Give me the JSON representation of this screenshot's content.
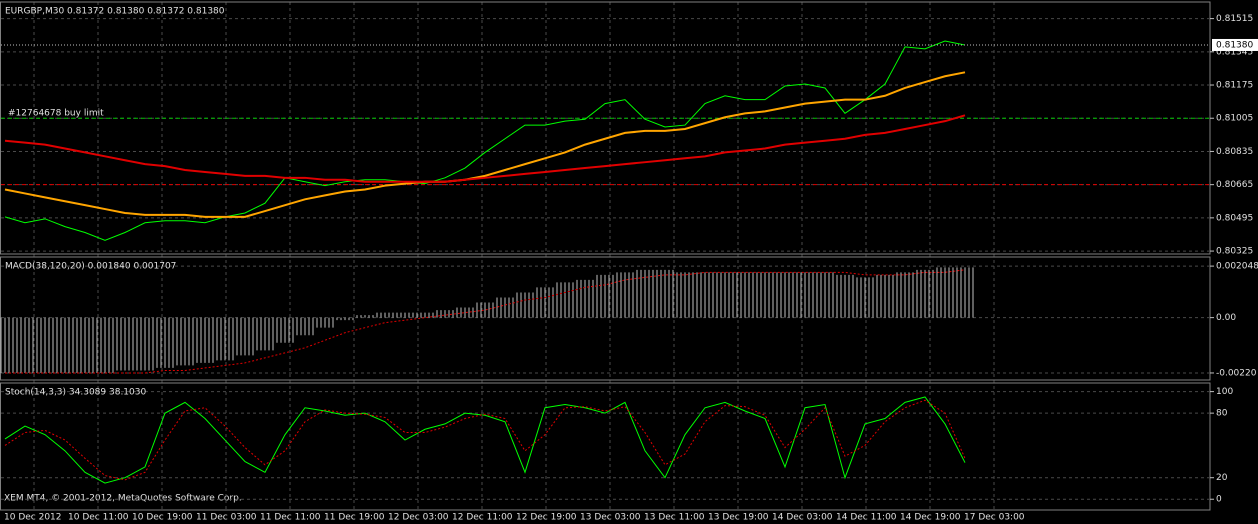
{
  "chart_data": [
    {
      "type": "line",
      "title": "EURGBP,M30  0.81372 0.81380 0.81372 0.81380",
      "ylim": [
        0.8031,
        0.816
      ],
      "yticks": [
        0.81515,
        0.81345,
        0.81175,
        0.81005,
        0.80835,
        0.80665,
        0.80495,
        0.80325
      ],
      "grid": true,
      "current_price": {
        "value": 0.8138,
        "label": "0.81380"
      },
      "levels": [
        {
          "value": 0.81005,
          "label": "#12764678 buy limit",
          "color": "#00c000"
        },
        {
          "value": 0.80665,
          "color": "#e00000"
        }
      ],
      "series": [
        {
          "color": "#00ff00",
          "width": 1,
          "values": [
            0.805,
            0.8047,
            0.8049,
            0.8045,
            0.8042,
            0.8038,
            0.8042,
            0.8047,
            0.8048,
            0.8048,
            0.8047,
            0.805,
            0.8052,
            0.8057,
            0.807,
            0.8068,
            0.8066,
            0.8068,
            0.8069,
            0.8069,
            0.8068,
            0.8067,
            0.807,
            0.8075,
            0.8083,
            0.809,
            0.8097,
            0.8097,
            0.8099,
            0.81,
            0.8108,
            0.811,
            0.81,
            0.8096,
            0.8097,
            0.8108,
            0.8112,
            0.811,
            0.811,
            0.8117,
            0.8118,
            0.8116,
            0.8103,
            0.811,
            0.8118,
            0.8137,
            0.8136,
            0.814,
            0.8138
          ]
        },
        {
          "color": "#ffa500",
          "width": 2,
          "values": [
            0.8064,
            0.8062,
            0.806,
            0.8058,
            0.8056,
            0.8054,
            0.8052,
            0.8051,
            0.8051,
            0.8051,
            0.805,
            0.805,
            0.805,
            0.8053,
            0.8056,
            0.8059,
            0.8061,
            0.8063,
            0.8064,
            0.8066,
            0.8067,
            0.8068,
            0.8068,
            0.8069,
            0.8071,
            0.8074,
            0.8077,
            0.808,
            0.8083,
            0.8087,
            0.809,
            0.8093,
            0.8094,
            0.8094,
            0.8095,
            0.8098,
            0.8101,
            0.8103,
            0.8104,
            0.8106,
            0.8108,
            0.8109,
            0.811,
            0.811,
            0.8112,
            0.8116,
            0.8119,
            0.8122,
            0.8124
          ]
        },
        {
          "color": "#e00000",
          "width": 2,
          "values": [
            0.8089,
            0.8088,
            0.8087,
            0.8085,
            0.8083,
            0.8081,
            0.8079,
            0.8077,
            0.8076,
            0.8074,
            0.8073,
            0.8072,
            0.8071,
            0.8071,
            0.807,
            0.807,
            0.8069,
            0.8069,
            0.8068,
            0.8068,
            0.8068,
            0.8068,
            0.8068,
            0.8069,
            0.807,
            0.8071,
            0.8072,
            0.8073,
            0.8074,
            0.8075,
            0.8076,
            0.8077,
            0.8078,
            0.8079,
            0.808,
            0.8081,
            0.8083,
            0.8084,
            0.8085,
            0.8087,
            0.8088,
            0.8089,
            0.809,
            0.8092,
            0.8093,
            0.8095,
            0.8097,
            0.8099,
            0.8102
          ]
        }
      ]
    },
    {
      "type": "bar",
      "title": "MACD(38,120,20) 0.001840 0.001707",
      "ylim": [
        -0.00248,
        0.00241
      ],
      "yticks": [
        0.002048,
        {
          "value": 0,
          "label": "0.00"
        },
        {
          "value": -0.0022,
          "label": "-0.00220"
        }
      ],
      "grid": true,
      "series": [
        {
          "style": "bar",
          "color": "#c0c0c0",
          "values": [
            -0.0022,
            -0.0022,
            -0.0022,
            -0.0022,
            -0.0022,
            -0.0022,
            -0.0021,
            -0.0021,
            -0.002,
            -0.0019,
            -0.0018,
            -0.0017,
            -0.0015,
            -0.0013,
            -0.001,
            -0.0007,
            -0.0004,
            -0.0001,
            0.0001,
            0.0002,
            0.0002,
            0.0002,
            0.0003,
            0.0004,
            0.0006,
            0.0008,
            0.001,
            0.0012,
            0.0014,
            0.0015,
            0.0017,
            0.0018,
            0.0019,
            0.0019,
            0.0018,
            0.0018,
            0.0018,
            0.0018,
            0.0018,
            0.0018,
            0.0018,
            0.0018,
            0.0017,
            0.0016,
            0.0017,
            0.0018,
            0.0019,
            0.002,
            0.002
          ]
        },
        {
          "style": "line",
          "color": "#e00000",
          "dash": true,
          "width": 1,
          "values": [
            -0.0022,
            -0.0022,
            -0.0022,
            -0.0022,
            -0.0022,
            -0.0022,
            -0.0022,
            -0.0022,
            -0.0021,
            -0.0021,
            -0.002,
            -0.0019,
            -0.0018,
            -0.0016,
            -0.0014,
            -0.0012,
            -0.0009,
            -0.0006,
            -0.0004,
            -0.0002,
            -0.0001,
            0.0,
            0.0001,
            0.0002,
            0.0003,
            0.0005,
            0.0007,
            0.0008,
            0.001,
            0.0012,
            0.0013,
            0.0015,
            0.0016,
            0.0017,
            0.0017,
            0.0018,
            0.0018,
            0.0018,
            0.0018,
            0.0018,
            0.0018,
            0.0018,
            0.0018,
            0.0017,
            0.0017,
            0.0017,
            0.0018,
            0.0018,
            0.0019
          ]
        }
      ]
    },
    {
      "type": "line",
      "title": "Stoch(14,3,3) 34.3089 38.1030",
      "ylim": [
        -10,
        108
      ],
      "yticks": [
        100,
        80,
        20,
        0
      ],
      "grid": true,
      "series": [
        {
          "color": "#00ff00",
          "width": 1,
          "values": [
            56,
            68,
            60,
            45,
            25,
            15,
            20,
            30,
            80,
            90,
            75,
            55,
            35,
            25,
            60,
            85,
            82,
            78,
            80,
            72,
            55,
            65,
            70,
            80,
            78,
            72,
            25,
            85,
            88,
            85,
            80,
            90,
            45,
            20,
            60,
            85,
            90,
            82,
            75,
            30,
            85,
            88,
            20,
            70,
            75,
            90,
            95,
            70,
            34
          ]
        },
        {
          "color": "#e00000",
          "dash": true,
          "width": 1,
          "values": [
            50,
            62,
            64,
            55,
            38,
            22,
            18,
            25,
            55,
            82,
            85,
            68,
            48,
            32,
            45,
            72,
            83,
            80,
            79,
            76,
            62,
            62,
            67,
            75,
            79,
            75,
            45,
            60,
            85,
            86,
            82,
            86,
            62,
            32,
            42,
            72,
            87,
            86,
            78,
            48,
            65,
            85,
            40,
            50,
            72,
            85,
            92,
            80,
            38
          ]
        }
      ]
    }
  ],
  "x_labels": [
    "10 Dec 2012",
    "10 Dec 11:00",
    "10 Dec 19:00",
    "11 Dec 03:00",
    "11 Dec 11:00",
    "11 Dec 19:00",
    "12 Dec 03:00",
    "12 Dec 11:00",
    "12 Dec 19:00",
    "13 Dec 03:00",
    "13 Dec 11:00",
    "13 Dec 19:00",
    "14 Dec 03:00",
    "14 Dec 11:00",
    "14 Dec 19:00",
    "17 Dec 03:00"
  ],
  "footer": "XEM MT4, © 2001-2012, MetaQuotes Software Corp."
}
